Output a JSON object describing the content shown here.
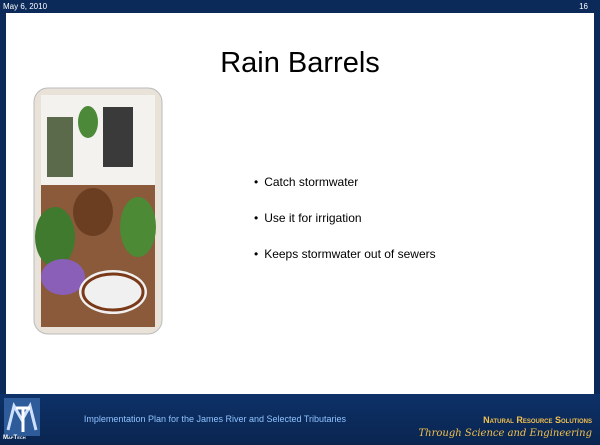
{
  "header": {
    "date": "May 6, 2010",
    "slide_number": "16"
  },
  "title": "Rain Barrels",
  "bullets": [
    "Catch stormwater",
    "Use it for irrigation",
    "Keeps stormwater out of sewers"
  ],
  "footer": {
    "logo": "MapTech",
    "center": "Implementation Plan for the James River and Selected Tributaries",
    "right_title": "Natural Resource Solutions",
    "right_tagline": "Through Science and Engineering"
  }
}
